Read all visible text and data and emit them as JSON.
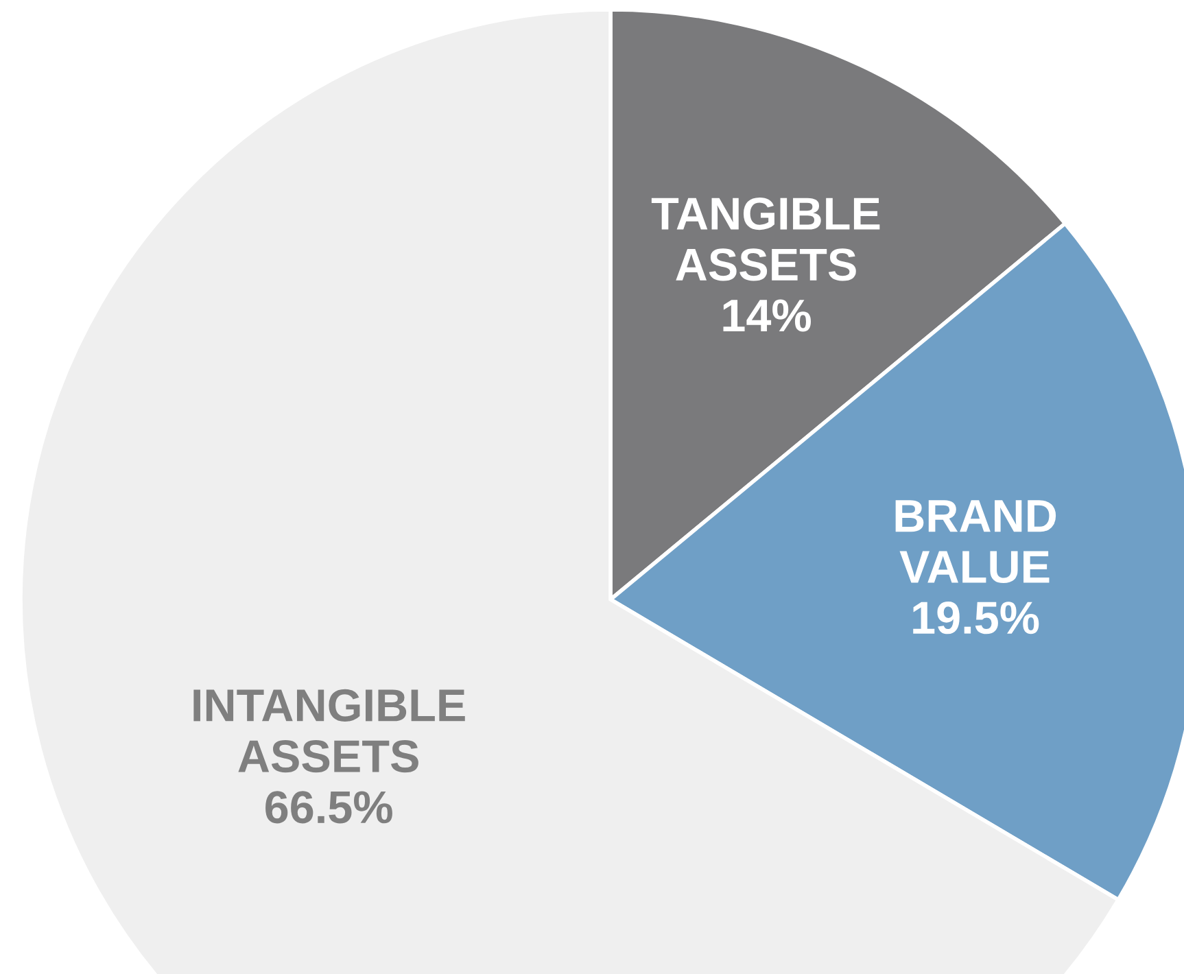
{
  "chart_data": {
    "type": "pie",
    "categories": [
      "TANGIBLE\nASSETS",
      "BRAND\nVALUE",
      "INTANGIBLE\nASSETS"
    ],
    "values": [
      14,
      19.5,
      66.5
    ],
    "colors": [
      "#7a7a7c",
      "#6f9fc6",
      "#efefef"
    ],
    "value_labels": [
      "14%",
      "19.5%",
      "66.5%"
    ],
    "legend": false
  }
}
